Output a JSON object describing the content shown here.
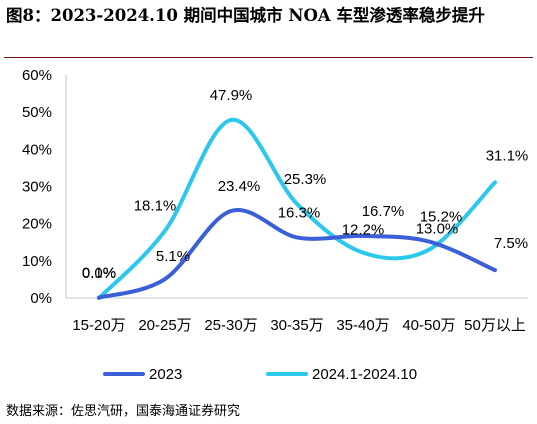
{
  "title": "图8：2023-2024.10 期间中国城市 NOA 车型渗透率稳步提升",
  "source": "数据来源：佐思汽研，国泰海通证券研究",
  "chart_data": {
    "type": "line",
    "categories": [
      "15-20万",
      "20-25万",
      "25-30万",
      "30-35万",
      "35-40万",
      "40-50万",
      "50万以上"
    ],
    "ylim": [
      0,
      60
    ],
    "yticks": [
      "0%",
      "10%",
      "20%",
      "30%",
      "40%",
      "50%",
      "60%"
    ],
    "grid": false,
    "smooth": true,
    "legend_position": "bottom",
    "series": [
      {
        "name": "2023",
        "color": "#3a5fd8",
        "values": [
          0.1,
          5.1,
          23.4,
          16.3,
          16.7,
          15.2,
          7.5
        ],
        "labels": [
          "0.1%",
          "5.1%",
          "23.4%",
          "16.3%",
          "16.7%",
          "15.2%",
          "7.5%"
        ]
      },
      {
        "name": "2024.1-2024.10",
        "color": "#2cc7ec",
        "values": [
          0.0,
          18.1,
          47.9,
          25.3,
          12.2,
          13.0,
          31.1
        ],
        "labels": [
          "0.0%",
          "18.1%",
          "47.9%",
          "25.3%",
          "12.2%",
          "13.0%",
          "31.1%"
        ]
      }
    ]
  }
}
